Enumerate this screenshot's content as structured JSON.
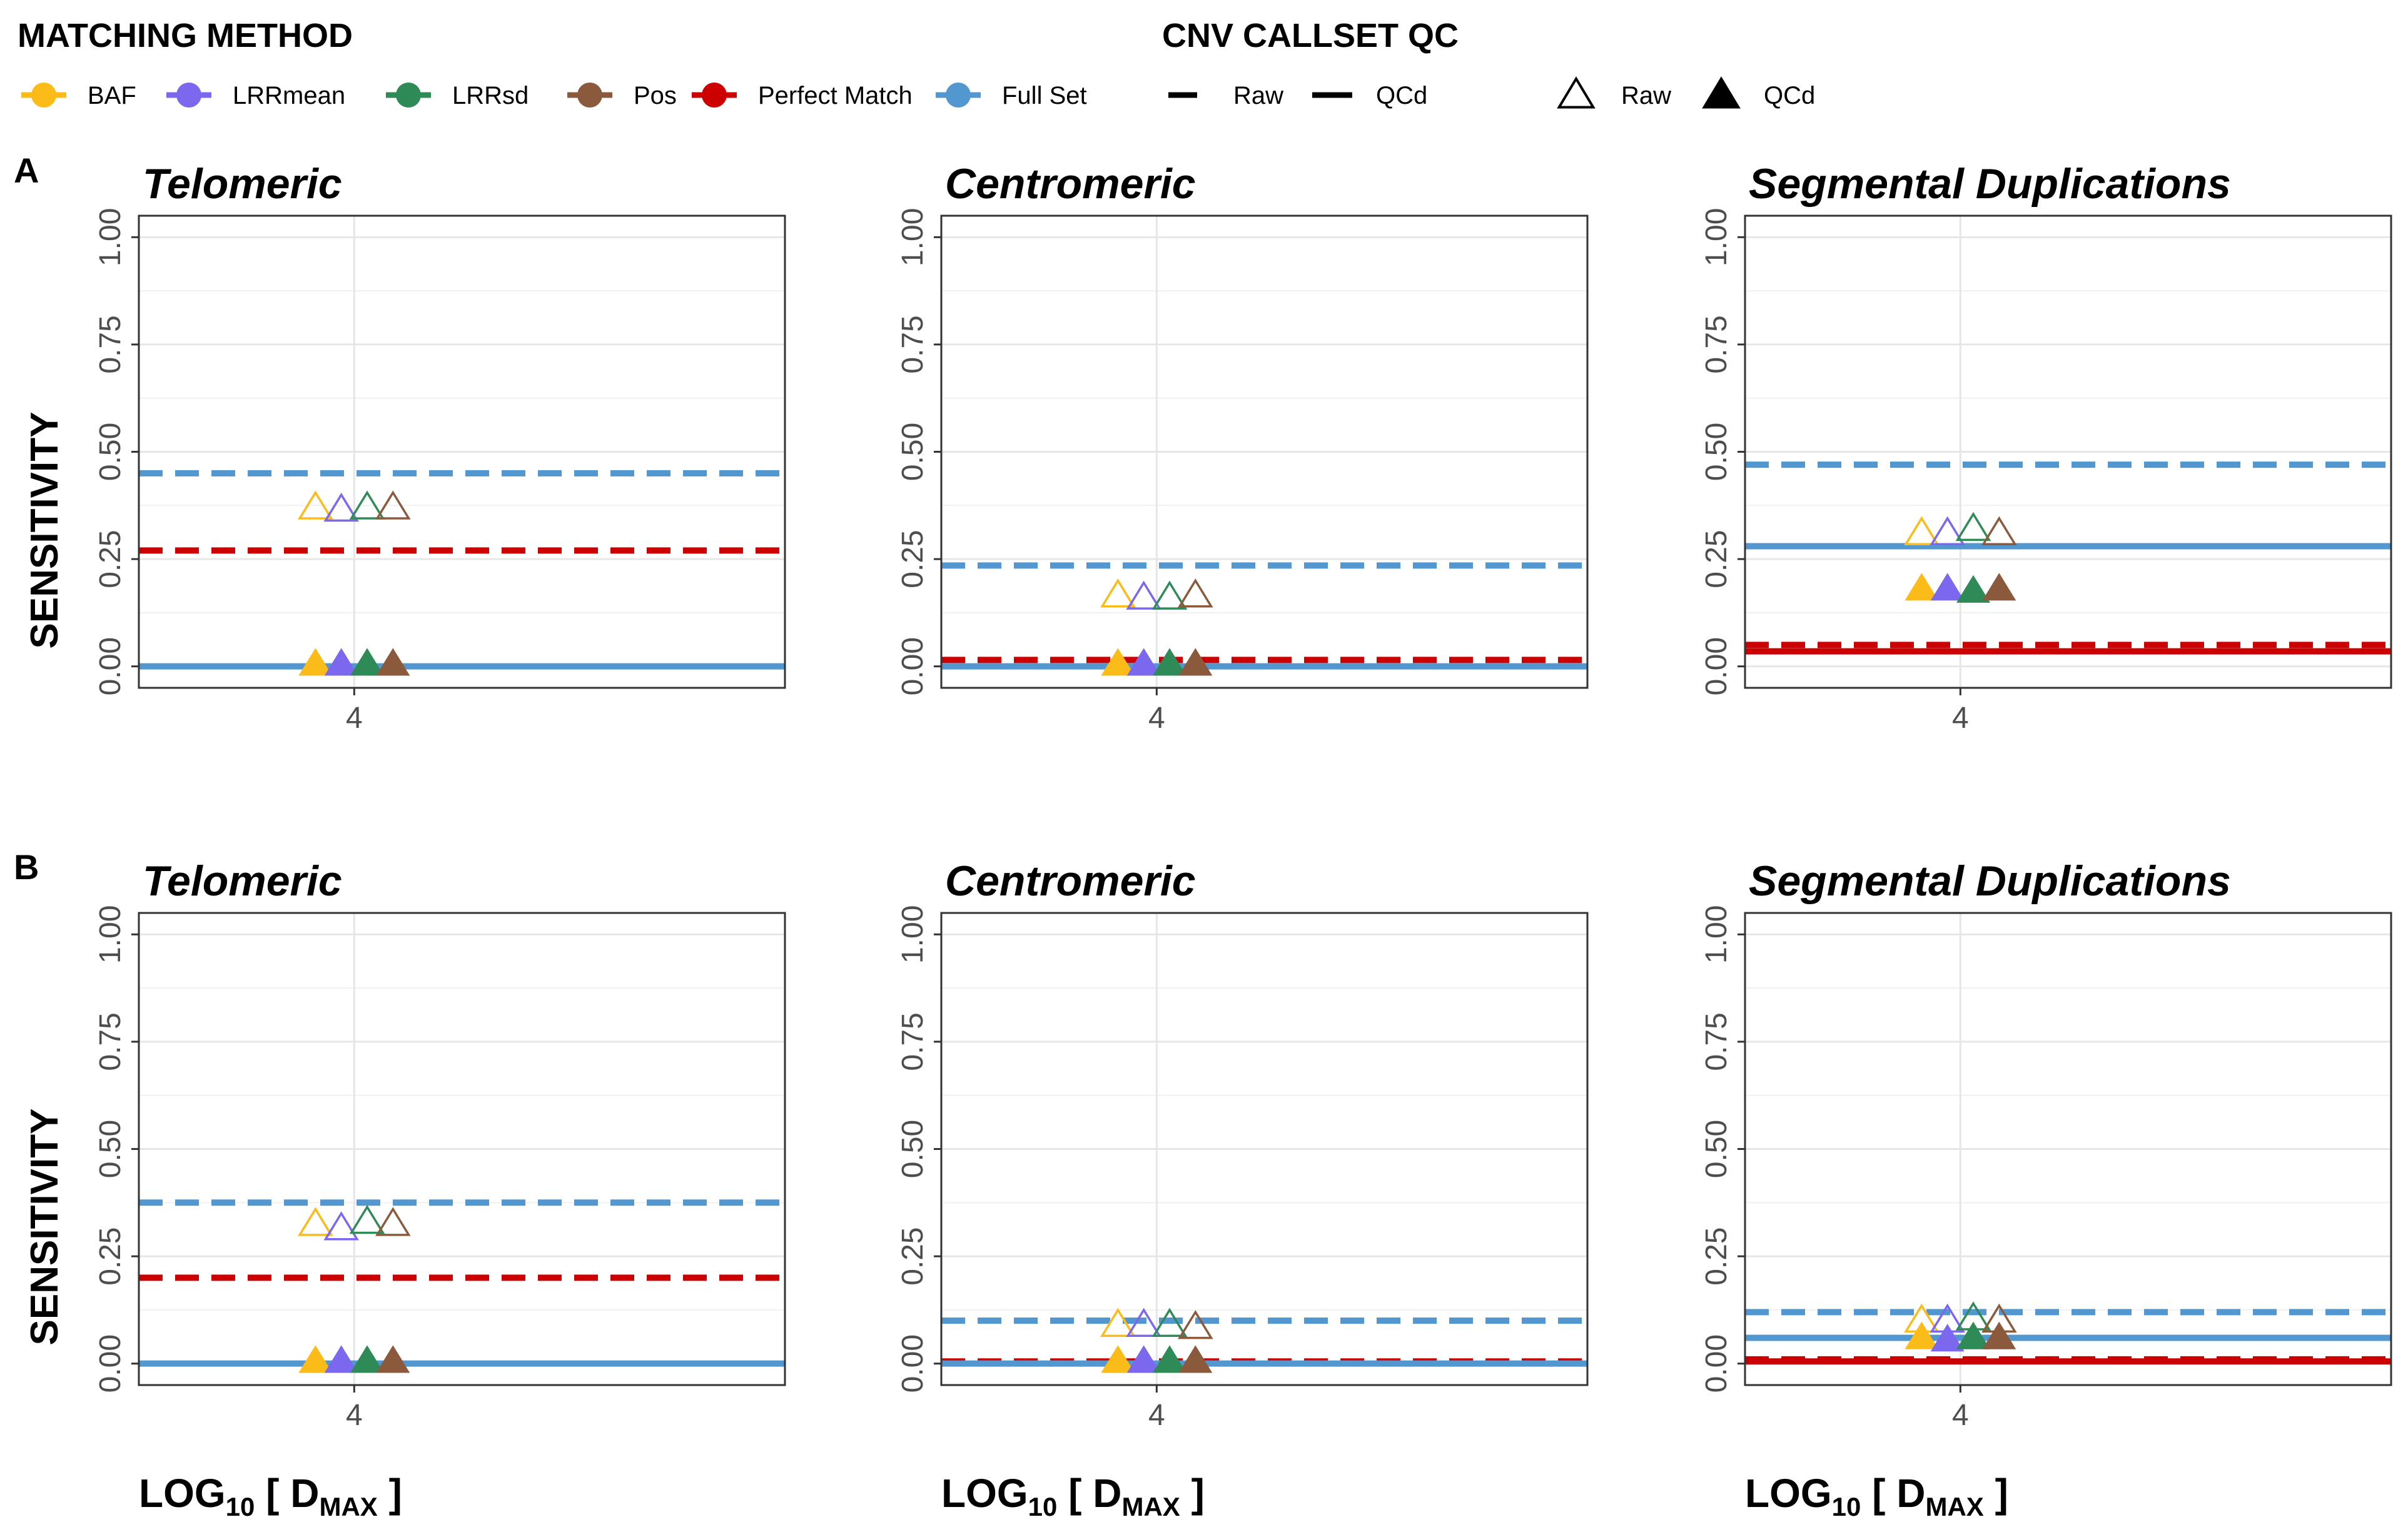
{
  "legend": {
    "matching_title": "MATCHING METHOD",
    "qc_title": "CNV CALLSET QC",
    "methods": [
      {
        "name": "BAF",
        "color": "#FBBC1A"
      },
      {
        "name": "LRRmean",
        "color": "#7B68EE"
      },
      {
        "name": "LRRsd",
        "color": "#2E8B57"
      },
      {
        "name": "Pos",
        "color": "#8B5A3C"
      },
      {
        "name": "Perfect Match",
        "color": "#CC0000"
      },
      {
        "name": "Full Set",
        "color": "#5297D0"
      }
    ],
    "line_types": [
      {
        "name": "Raw",
        "style": "dashed"
      },
      {
        "name": "QCd",
        "style": "solid"
      }
    ],
    "shapes": [
      {
        "name": "Raw",
        "shape": "open-triangle"
      },
      {
        "name": "QCd",
        "shape": "filled-triangle"
      }
    ]
  },
  "rows": [
    {
      "tag": "A"
    },
    {
      "tag": "B"
    }
  ],
  "axes": {
    "ylabel": "SENSITIVITY",
    "xlabel_main": "LOG",
    "xlabel_sub": "10",
    "xlabel_bracket_open": " [ D",
    "xlabel_sub2": "MAX",
    "xlabel_bracket_close": " ]",
    "yticks": [
      "0.00",
      "0.25",
      "0.50",
      "0.75",
      "1.00"
    ],
    "xtick": "4",
    "ylim": [
      -0.05,
      1.05
    ]
  },
  "chart_data": [
    {
      "type": "scatter",
      "row": "A",
      "title": "Telomeric",
      "x": 4,
      "lines": {
        "full_raw": 0.45,
        "full_qcd": 0.0,
        "perfect_raw": 0.27,
        "perfect_qcd": null
      },
      "points_raw": {
        "BAF": 0.37,
        "LRRmean": 0.365,
        "LRRsd": 0.37,
        "Pos": 0.37
      },
      "points_qcd": {
        "BAF": 0.005,
        "LRRmean": 0.005,
        "LRRsd": 0.005,
        "Pos": 0.005
      }
    },
    {
      "type": "scatter",
      "row": "A",
      "title": "Centromeric",
      "x": 4,
      "lines": {
        "full_raw": 0.235,
        "full_qcd": 0.0,
        "perfect_raw": 0.015,
        "perfect_qcd": null
      },
      "points_raw": {
        "BAF": 0.165,
        "LRRmean": 0.16,
        "LRRsd": 0.16,
        "Pos": 0.165
      },
      "points_qcd": {
        "BAF": 0.005,
        "LRRmean": 0.005,
        "LRRsd": 0.005,
        "Pos": 0.005
      }
    },
    {
      "type": "scatter",
      "row": "A",
      "title": "Segmental Duplications",
      "x": 4,
      "lines": {
        "full_raw": 0.47,
        "full_qcd": 0.28,
        "perfect_raw": 0.05,
        "perfect_qcd": 0.035
      },
      "points_raw": {
        "BAF": 0.31,
        "LRRmean": 0.31,
        "LRRsd": 0.32,
        "Pos": 0.31
      },
      "points_qcd": {
        "BAF": 0.18,
        "LRRmean": 0.18,
        "LRRsd": 0.175,
        "Pos": 0.18
      }
    },
    {
      "type": "scatter",
      "row": "B",
      "title": "Telomeric",
      "x": 4,
      "lines": {
        "full_raw": 0.375,
        "full_qcd": 0.0,
        "perfect_raw": 0.2,
        "perfect_qcd": null
      },
      "points_raw": {
        "BAF": 0.325,
        "LRRmean": 0.315,
        "LRRsd": 0.33,
        "Pos": 0.325
      },
      "points_qcd": {
        "BAF": 0.005,
        "LRRmean": 0.005,
        "LRRsd": 0.005,
        "Pos": 0.005
      }
    },
    {
      "type": "scatter",
      "row": "B",
      "title": "Centromeric",
      "x": 4,
      "lines": {
        "full_raw": 0.1,
        "full_qcd": 0.0,
        "perfect_raw": 0.005,
        "perfect_qcd": null
      },
      "points_raw": {
        "BAF": 0.09,
        "LRRmean": 0.09,
        "LRRsd": 0.09,
        "Pos": 0.085
      },
      "points_qcd": {
        "BAF": 0.005,
        "LRRmean": 0.005,
        "LRRsd": 0.005,
        "Pos": 0.005
      }
    },
    {
      "type": "scatter",
      "row": "B",
      "title": "Segmental Duplications",
      "x": 4,
      "lines": {
        "full_raw": 0.12,
        "full_qcd": 0.06,
        "perfect_raw": 0.01,
        "perfect_qcd": 0.005
      },
      "points_raw": {
        "BAF": 0.1,
        "LRRmean": 0.1,
        "LRRsd": 0.105,
        "Pos": 0.1
      },
      "points_qcd": {
        "BAF": 0.06,
        "LRRmean": 0.055,
        "LRRsd": 0.06,
        "Pos": 0.06
      }
    }
  ]
}
